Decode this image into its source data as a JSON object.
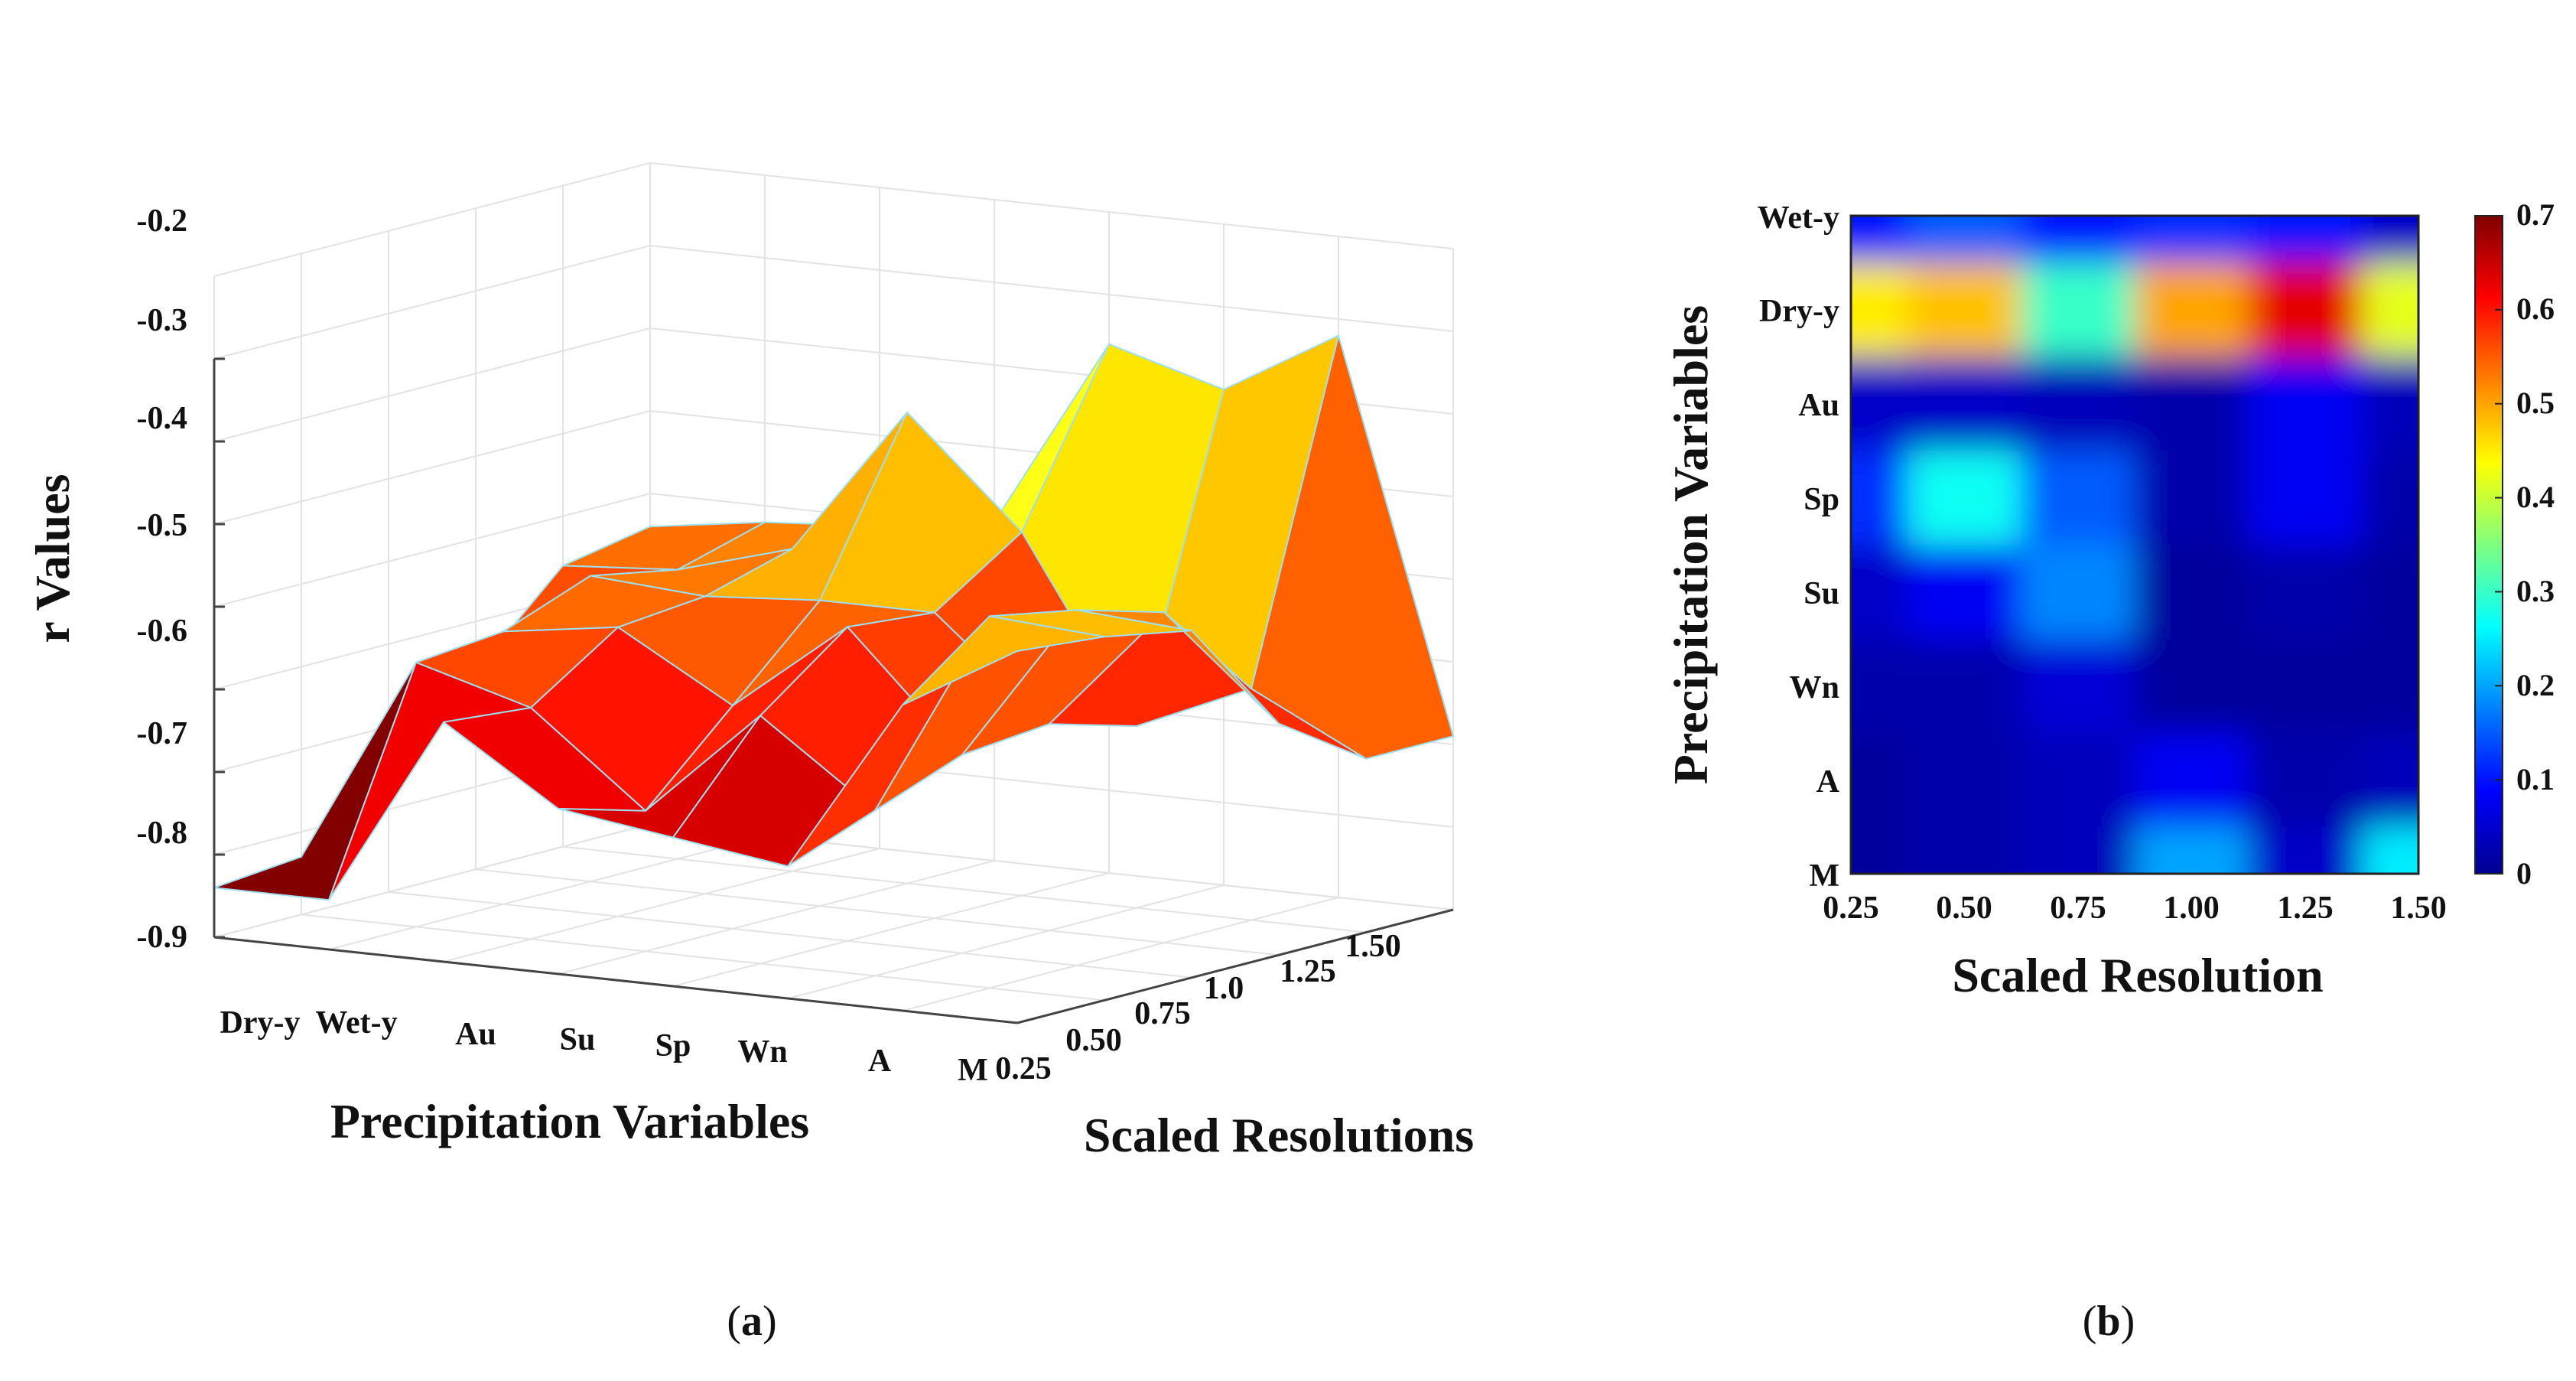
{
  "chart_data": [
    {
      "panel": "a",
      "type": "surface3d",
      "panel_label": "(a)",
      "panel_label_parts": [
        "(",
        "a",
        ")"
      ],
      "title": "",
      "xlabel": "Precipitation Variables",
      "ylabel": "Scaled Resolutions",
      "zlabel": "r Values",
      "x_categories": [
        "Dry-y",
        "Wet-y",
        "Au",
        "Su",
        "Sp",
        "Wn",
        "A",
        "M"
      ],
      "y_ticks": [
        "0.25",
        "0.50",
        "0.75",
        "1.0",
        "1.25",
        "1.50"
      ],
      "z_ticks": [
        "-0.2",
        "-0.3",
        "-0.4",
        "-0.5",
        "-0.6",
        "-0.7",
        "-0.8",
        "-0.9"
      ],
      "zlim": [
        -0.9,
        -0.1
      ],
      "colormap": "hot",
      "series": [
        {
          "name": "0.25",
          "values": [
            -0.84,
            -0.84,
            -0.61,
            -0.7,
            -0.72,
            -0.74,
            -0.53,
            -0.45
          ]
        },
        {
          "name": "0.50",
          "values": [
            -0.83,
            -0.58,
            -0.62,
            -0.73,
            -0.6,
            -0.7,
            -0.45,
            -0.46
          ]
        },
        {
          "name": "0.75",
          "values": [
            -0.78,
            -0.57,
            -0.55,
            -0.63,
            -0.52,
            -0.66,
            -0.47,
            -0.48
          ]
        },
        {
          "name": "1.0",
          "values": [
            -0.66,
            -0.53,
            -0.54,
            -0.53,
            -0.53,
            -0.65,
            -0.5,
            -0.62
          ]
        },
        {
          "name": "1.25",
          "values": [
            -0.56,
            -0.55,
            -0.51,
            -0.33,
            -0.46,
            -0.68,
            -0.62,
            -0.69
          ]
        },
        {
          "name": "1.50",
          "values": [
            -0.54,
            -0.52,
            -0.51,
            -0.49,
            -0.26,
            -0.3,
            -0.22,
            -0.69
          ]
        }
      ]
    },
    {
      "panel": "b",
      "type": "heatmap",
      "panel_label": "(b)",
      "panel_label_parts": [
        "(",
        "b",
        ")"
      ],
      "title": "",
      "xlabel": "Scaled Resolution",
      "ylabel": "Precipitation Variables",
      "x": [
        "0.25",
        "0.50",
        "0.75",
        "1.00",
        "1.25",
        "1.50"
      ],
      "y": [
        "Wet-y",
        "Dry-y",
        "Au",
        "Sp",
        "Su",
        "Wn",
        "A",
        "M"
      ],
      "colormap": "jet",
      "clim": [
        0,
        0.7
      ],
      "colorbar_ticks": [
        "0.7",
        "0.6",
        "0.5",
        "0.4",
        "0.3",
        "0.2",
        "0.1",
        "0"
      ],
      "values": [
        [
          0.1,
          0.15,
          0.1,
          0.12,
          0.1,
          0.05
        ],
        [
          0.45,
          0.48,
          0.3,
          0.5,
          0.63,
          0.42
        ],
        [
          0.05,
          0.05,
          0.04,
          0.03,
          0.08,
          0.04
        ],
        [
          0.12,
          0.27,
          0.15,
          0.03,
          0.08,
          0.03
        ],
        [
          0.05,
          0.08,
          0.18,
          0.02,
          0.03,
          0.02
        ],
        [
          0.03,
          0.03,
          0.06,
          0.02,
          0.02,
          0.02
        ],
        [
          0.02,
          0.03,
          0.04,
          0.08,
          0.03,
          0.04
        ],
        [
          0.02,
          0.03,
          0.04,
          0.2,
          0.05,
          0.25
        ]
      ]
    }
  ]
}
